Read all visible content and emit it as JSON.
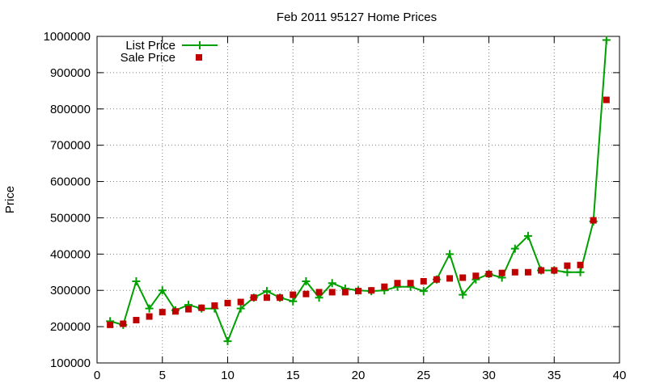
{
  "chart_data": {
    "type": "line",
    "title": "Feb 2011 95127 Home Prices",
    "xlabel": "",
    "ylabel": "Price",
    "xlim": [
      0,
      40
    ],
    "ylim": [
      100000,
      1000000
    ],
    "xticks": [
      0,
      5,
      10,
      15,
      20,
      25,
      30,
      35,
      40
    ],
    "yticks": [
      100000,
      200000,
      300000,
      400000,
      500000,
      600000,
      700000,
      800000,
      900000,
      1000000
    ],
    "grid": true,
    "legend_position": "top-left",
    "series": [
      {
        "name": "List Price",
        "style": "line+cross",
        "color": "#00a000",
        "points": [
          [
            1,
            215000
          ],
          [
            2,
            205000
          ],
          [
            3,
            325000
          ],
          [
            4,
            250000
          ],
          [
            5,
            300000
          ],
          [
            6,
            245000
          ],
          [
            7,
            260000
          ],
          [
            8,
            250000
          ],
          [
            9,
            250000
          ],
          [
            10,
            160000
          ],
          [
            11,
            250000
          ],
          [
            12,
            280000
          ],
          [
            13,
            298000
          ],
          [
            14,
            280000
          ],
          [
            15,
            270000
          ],
          [
            16,
            325000
          ],
          [
            17,
            280000
          ],
          [
            18,
            320000
          ],
          [
            19,
            305000
          ],
          [
            20,
            300000
          ],
          [
            21,
            298000
          ],
          [
            22,
            300000
          ],
          [
            23,
            310000
          ],
          [
            24,
            310000
          ],
          [
            25,
            298000
          ],
          [
            26,
            330000
          ],
          [
            27,
            400000
          ],
          [
            28,
            288000
          ],
          [
            29,
            330000
          ],
          [
            30,
            345000
          ],
          [
            31,
            335000
          ],
          [
            32,
            415000
          ],
          [
            33,
            450000
          ],
          [
            34,
            355000
          ],
          [
            35,
            355000
          ],
          [
            36,
            350000
          ],
          [
            37,
            350000
          ],
          [
            38,
            490000
          ],
          [
            39,
            990000
          ]
        ]
      },
      {
        "name": "Sale Price",
        "style": "square",
        "color": "#c00000",
        "points": [
          [
            1,
            205000
          ],
          [
            2,
            208000
          ],
          [
            3,
            218000
          ],
          [
            4,
            228000
          ],
          [
            5,
            240000
          ],
          [
            6,
            242000
          ],
          [
            7,
            248000
          ],
          [
            8,
            252000
          ],
          [
            9,
            258000
          ],
          [
            10,
            265000
          ],
          [
            11,
            268000
          ],
          [
            12,
            280000
          ],
          [
            13,
            280000
          ],
          [
            14,
            280000
          ],
          [
            15,
            288000
          ],
          [
            16,
            290000
          ],
          [
            17,
            295000
          ],
          [
            18,
            295000
          ],
          [
            19,
            295000
          ],
          [
            20,
            298000
          ],
          [
            21,
            300000
          ],
          [
            22,
            310000
          ],
          [
            23,
            320000
          ],
          [
            24,
            320000
          ],
          [
            25,
            325000
          ],
          [
            26,
            330000
          ],
          [
            27,
            333000
          ],
          [
            28,
            335000
          ],
          [
            29,
            340000
          ],
          [
            30,
            345000
          ],
          [
            31,
            348000
          ],
          [
            32,
            350000
          ],
          [
            33,
            350000
          ],
          [
            34,
            355000
          ],
          [
            35,
            355000
          ],
          [
            36,
            368000
          ],
          [
            37,
            370000
          ],
          [
            38,
            493000
          ],
          [
            39,
            825000
          ]
        ]
      }
    ]
  }
}
